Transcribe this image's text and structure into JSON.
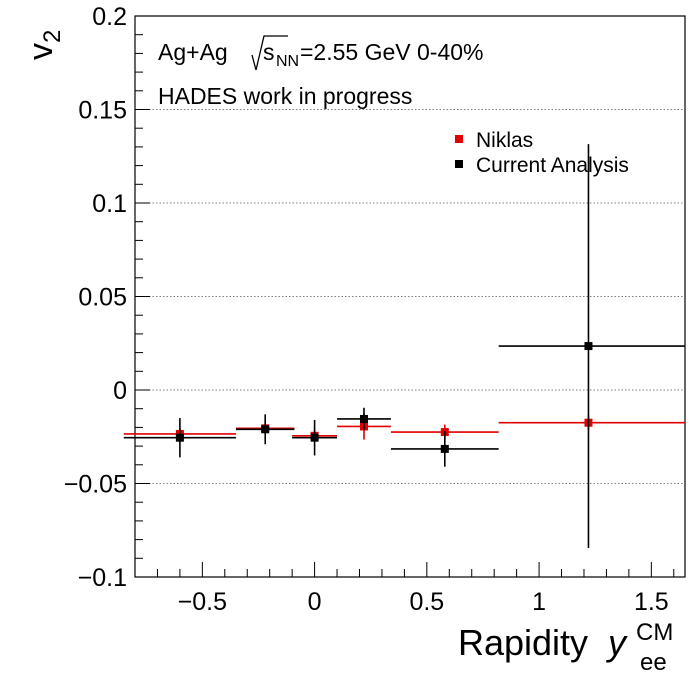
{
  "chart_data": {
    "type": "scatter",
    "ylabel_main": "v",
    "ylabel_sub": "2",
    "xlabel_main": "Rapidity ",
    "xlabel_var": "y",
    "xlabel_sup": "CM",
    "xlabel_sub": "ee",
    "xlim": [
      -0.8,
      1.65
    ],
    "ylim": [
      -0.1,
      0.2
    ],
    "grid": "horizontal-dotted",
    "legend_position": "top-right",
    "annotations": {
      "line1_a": "Ag+Ag ",
      "line1_sqrt": "s",
      "line1_sub": "NN",
      "line1_b": "=2.55 GeV 0-40%",
      "line2": "HADES work in progress"
    },
    "xticks": [
      {
        "v": -0.5,
        "label": "−0.5"
      },
      {
        "v": 0,
        "label": "0"
      },
      {
        "v": 0.5,
        "label": "0.5"
      },
      {
        "v": 1,
        "label": "1"
      },
      {
        "v": 1.5,
        "label": "1.5"
      }
    ],
    "yticks": [
      {
        "v": -0.1,
        "label": "−0.1"
      },
      {
        "v": -0.05,
        "label": "−0.05"
      },
      {
        "v": 0,
        "label": "0"
      },
      {
        "v": 0.05,
        "label": "0.05"
      },
      {
        "v": 0.1,
        "label": "0.1"
      },
      {
        "v": 0.15,
        "label": "0.15"
      },
      {
        "v": 0.2,
        "label": "0.2"
      }
    ],
    "series": [
      {
        "name": "Niklas",
        "color": "#e00000",
        "points": [
          {
            "x": -0.6,
            "y": -0.0235,
            "xerr": [
              0.25,
              0.25
            ],
            "yerr": 0.003
          },
          {
            "x": -0.22,
            "y": -0.0205,
            "xerr": [
              0.13,
              0.13
            ],
            "yerr": 0.003
          },
          {
            "x": 0.0,
            "y": -0.0245,
            "xerr": [
              0.1,
              0.1
            ],
            "yerr": 0.003
          },
          {
            "x": 0.22,
            "y": -0.0195,
            "xerr": [
              0.12,
              0.12
            ],
            "yerr": 0.007
          },
          {
            "x": 0.58,
            "y": -0.0225,
            "xerr": [
              0.24,
              0.24
            ],
            "yerr": 0.004
          },
          {
            "x": 1.22,
            "y": -0.0175,
            "xerr": [
              0.4,
              0.43
            ],
            "yerr": 0.004
          }
        ]
      },
      {
        "name": "Current Analysis",
        "color": "#000000",
        "points": [
          {
            "x": -0.6,
            "y": -0.0255,
            "xerr": [
              0.25,
              0.25
            ],
            "yerr": 0.0105
          },
          {
            "x": -0.22,
            "y": -0.021,
            "xerr": [
              0.13,
              0.13
            ],
            "yerr": 0.008
          },
          {
            "x": 0.0,
            "y": -0.0255,
            "xerr": [
              0.1,
              0.1
            ],
            "yerr": 0.0095
          },
          {
            "x": 0.22,
            "y": -0.0155,
            "xerr": [
              0.12,
              0.12
            ],
            "yerr": 0.006
          },
          {
            "x": 0.58,
            "y": -0.0315,
            "xerr": [
              0.24,
              0.24
            ],
            "yerr": 0.0095
          },
          {
            "x": 1.22,
            "y": 0.0235,
            "xerr": [
              0.4,
              0.43
            ],
            "yerr": 0.108
          }
        ]
      }
    ]
  }
}
